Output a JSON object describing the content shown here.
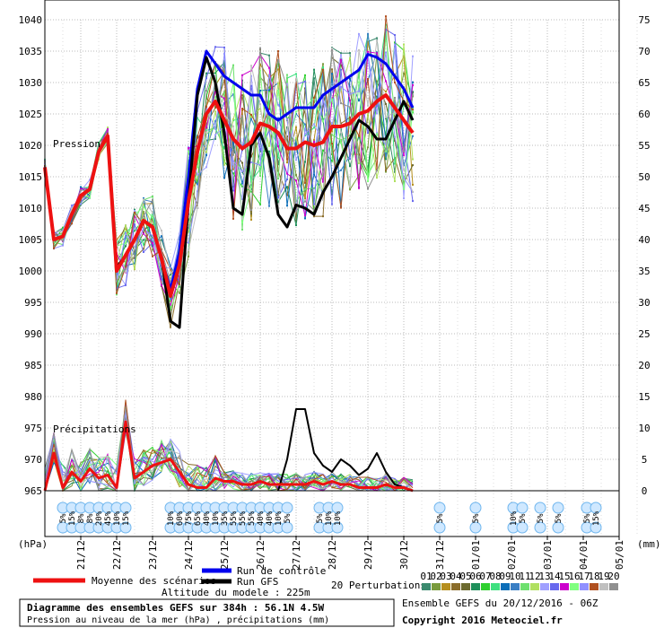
{
  "chart_data": {
    "type": "line",
    "title": "Diagramme des ensembles GEFS sur 384h : 56.1N 4.5W",
    "subtitle": "Pression au niveau de la mer (hPa) , précipitations (mm)",
    "left_unit": "(hPa)",
    "right_unit": "(mm)",
    "left_ticks": [
      965,
      970,
      975,
      980,
      985,
      990,
      995,
      1000,
      1005,
      1010,
      1015,
      1020,
      1025,
      1030,
      1035,
      1040
    ],
    "right_ticks": [
      0,
      5,
      10,
      15,
      20,
      25,
      30,
      35,
      40,
      45,
      50,
      55,
      60,
      65,
      70,
      75
    ],
    "y_left_range": [
      965,
      1040
    ],
    "y_right_range": [
      0,
      75
    ],
    "x_start_days": 0,
    "x_end_days": 16,
    "date_ticks": [
      "21/12",
      "22/12",
      "23/12",
      "24/12",
      "25/12",
      "26/12",
      "27/12",
      "28/12",
      "29/12",
      "30/12",
      "31/12",
      "01/01",
      "02/01",
      "03/01",
      "04/01",
      "05/01"
    ],
    "section_labels": {
      "pressure": "Pression",
      "precip": "Précipitations"
    },
    "grid": true,
    "series": [
      {
        "name": "Moyenne des scénarios",
        "color": "#ee1111",
        "pressure": [
          [
            0,
            1016.5
          ],
          [
            0.25,
            1005
          ],
          [
            0.5,
            1005.5
          ],
          [
            0.75,
            1009
          ],
          [
            1,
            1012
          ],
          [
            1.25,
            1013
          ],
          [
            1.5,
            1019
          ],
          [
            1.75,
            1021.5
          ],
          [
            2,
            1000
          ],
          [
            2.25,
            1002.5
          ],
          [
            2.5,
            1005
          ],
          [
            2.75,
            1008
          ],
          [
            3,
            1007
          ],
          [
            3.25,
            1002
          ],
          [
            3.5,
            996
          ],
          [
            3.75,
            1001
          ],
          [
            4,
            1011
          ],
          [
            4.25,
            1019
          ],
          [
            4.5,
            1025
          ],
          [
            4.75,
            1027
          ],
          [
            5,
            1024
          ],
          [
            5.25,
            1021
          ],
          [
            5.5,
            1019.5
          ],
          [
            5.75,
            1020.5
          ],
          [
            6,
            1023.5
          ],
          [
            6.25,
            1023
          ],
          [
            6.5,
            1022
          ],
          [
            6.75,
            1019.5
          ],
          [
            7,
            1019.5
          ],
          [
            7.25,
            1020.5
          ],
          [
            7.5,
            1020
          ],
          [
            7.75,
            1020.5
          ],
          [
            8,
            1023
          ],
          [
            8.25,
            1023
          ],
          [
            8.5,
            1023.5
          ],
          [
            8.75,
            1025
          ],
          [
            9,
            1025.5
          ],
          [
            9.25,
            1027
          ],
          [
            9.5,
            1028
          ],
          [
            9.75,
            1026
          ],
          [
            10,
            1024
          ],
          [
            10.25,
            1022
          ]
        ],
        "precip": [
          [
            0,
            0
          ],
          [
            0.25,
            6
          ],
          [
            0.5,
            0.5
          ],
          [
            0.75,
            3
          ],
          [
            1,
            1.5
          ],
          [
            1.25,
            3.5
          ],
          [
            1.5,
            2
          ],
          [
            1.75,
            2.5
          ],
          [
            2,
            0.5
          ],
          [
            2.25,
            11
          ],
          [
            2.5,
            2
          ],
          [
            2.75,
            3
          ],
          [
            3,
            4
          ],
          [
            3.25,
            4.5
          ],
          [
            3.5,
            5
          ],
          [
            3.75,
            3
          ],
          [
            4,
            1
          ],
          [
            4.25,
            0.5
          ],
          [
            4.5,
            0.5
          ],
          [
            4.75,
            2
          ],
          [
            5,
            1.5
          ],
          [
            5.25,
            1.5
          ],
          [
            5.5,
            1
          ],
          [
            5.75,
            1
          ],
          [
            6,
            1.5
          ],
          [
            6.25,
            1
          ],
          [
            6.5,
            1
          ],
          [
            6.75,
            1
          ],
          [
            7,
            1
          ],
          [
            7.25,
            1
          ],
          [
            7.5,
            1.5
          ],
          [
            7.75,
            1
          ],
          [
            8,
            1.5
          ],
          [
            8.25,
            1
          ],
          [
            8.5,
            1
          ],
          [
            8.75,
            0.5
          ],
          [
            9,
            0.5
          ],
          [
            9.25,
            0.5
          ],
          [
            9.5,
            1
          ],
          [
            9.75,
            0.5
          ],
          [
            10,
            0.5
          ],
          [
            10.25,
            0
          ]
        ]
      },
      {
        "name": "Run de contrôle",
        "color": "#0000ee",
        "pressure": [
          [
            0,
            1016.5
          ],
          [
            0.25,
            1005
          ],
          [
            0.5,
            1005.5
          ],
          [
            0.75,
            1009
          ],
          [
            1,
            1012
          ],
          [
            1.25,
            1013
          ],
          [
            1.5,
            1019
          ],
          [
            1.75,
            1021.5
          ],
          [
            2,
            1000
          ],
          [
            2.25,
            1002.5
          ],
          [
            2.5,
            1005
          ],
          [
            2.75,
            1008
          ],
          [
            3,
            1007
          ],
          [
            3.25,
            1002
          ],
          [
            3.5,
            997
          ],
          [
            3.75,
            1003
          ],
          [
            4,
            1015
          ],
          [
            4.25,
            1029
          ],
          [
            4.5,
            1035
          ],
          [
            4.75,
            1033
          ],
          [
            5,
            1031
          ],
          [
            5.25,
            1030
          ],
          [
            5.5,
            1029
          ],
          [
            5.75,
            1028
          ],
          [
            6,
            1028
          ],
          [
            6.25,
            1025
          ],
          [
            6.5,
            1024
          ],
          [
            6.75,
            1025
          ],
          [
            7,
            1026
          ],
          [
            7.25,
            1026
          ],
          [
            7.5,
            1026
          ],
          [
            7.75,
            1028
          ],
          [
            8,
            1029
          ],
          [
            8.25,
            1030
          ],
          [
            8.5,
            1031
          ],
          [
            8.75,
            1032
          ],
          [
            9,
            1034.5
          ],
          [
            9.25,
            1034
          ],
          [
            9.5,
            1033
          ],
          [
            9.75,
            1031
          ],
          [
            10,
            1029
          ],
          [
            10.25,
            1026
          ]
        ],
        "precip": []
      },
      {
        "name": "Run GFS",
        "color": "#000000",
        "pressure": [
          [
            0,
            1016.5
          ],
          [
            0.25,
            1005
          ],
          [
            0.5,
            1005.5
          ],
          [
            0.75,
            1009
          ],
          [
            1,
            1012
          ],
          [
            1.25,
            1013
          ],
          [
            1.5,
            1019
          ],
          [
            1.75,
            1021.5
          ],
          [
            2,
            1000.5
          ],
          [
            2.25,
            1002.5
          ],
          [
            2.5,
            1005
          ],
          [
            2.75,
            1008
          ],
          [
            3,
            1007
          ],
          [
            3.25,
            1002
          ],
          [
            3.5,
            992
          ],
          [
            3.75,
            991
          ],
          [
            4,
            1011
          ],
          [
            4.25,
            1028
          ],
          [
            4.5,
            1034
          ],
          [
            4.75,
            1030
          ],
          [
            5,
            1022
          ],
          [
            5.25,
            1010
          ],
          [
            5.5,
            1009
          ],
          [
            5.75,
            1020
          ],
          [
            6,
            1022
          ],
          [
            6.25,
            1018
          ],
          [
            6.5,
            1009
          ],
          [
            6.75,
            1007
          ],
          [
            7,
            1010.5
          ],
          [
            7.25,
            1010
          ],
          [
            7.5,
            1009
          ],
          [
            7.75,
            1012.5
          ],
          [
            8,
            1015
          ],
          [
            8.25,
            1018
          ],
          [
            8.5,
            1021
          ],
          [
            8.75,
            1024
          ],
          [
            9,
            1023
          ],
          [
            9.25,
            1021
          ],
          [
            9.5,
            1021
          ],
          [
            9.75,
            1024
          ],
          [
            10,
            1027
          ],
          [
            10.25,
            1024
          ]
        ],
        "precip": [
          [
            6.5,
            0
          ],
          [
            6.75,
            5
          ],
          [
            7,
            13
          ],
          [
            7.25,
            13
          ],
          [
            7.5,
            6
          ],
          [
            7.75,
            4
          ],
          [
            8,
            3
          ],
          [
            8.25,
            5
          ],
          [
            8.5,
            4
          ],
          [
            8.75,
            2.5
          ],
          [
            9,
            3.5
          ],
          [
            9.25,
            6
          ],
          [
            9.5,
            3
          ],
          [
            9.75,
            1
          ],
          [
            10,
            0.5
          ],
          [
            10.25,
            0
          ]
        ]
      }
    ],
    "n_perturbations": 20,
    "perturbation_colors": [
      "#3b8a6e",
      "#7a9b3d",
      "#b58f1e",
      "#8b6d2a",
      "#6c6a2f",
      "#1f8f5a",
      "#2fd02f",
      "#40e080",
      "#0c6eb8",
      "#3a7fc4",
      "#6ee06e",
      "#b0e060",
      "#a0a0ff",
      "#6868ee",
      "#cc00cc",
      "#80ff80",
      "#9090ff",
      "#b05020",
      "#c0c0c0",
      "#909090"
    ],
    "precip_percent_groups": [
      {
        "x_start": 0.5,
        "labels": [
          "5%",
          "15%",
          "8%",
          "8%",
          "20%",
          "45%",
          "10%",
          "15%"
        ]
      },
      {
        "x_start": 3.5,
        "labels": [
          "10%",
          "60%",
          "75%",
          "65%",
          "40%",
          "10%",
          "35%",
          "55%",
          "55%",
          "55%",
          "40%",
          "40%",
          "10%",
          "5%"
        ]
      },
      {
        "x_start": 7.65,
        "labels": [
          "5%",
          "10%",
          "10%"
        ]
      },
      {
        "x_start": 11,
        "labels": [
          "5%"
        ]
      },
      {
        "x_start": 12,
        "labels": [
          "5%"
        ]
      },
      {
        "x_start": 13.05,
        "labels": [
          "10%",
          "5%"
        ]
      },
      {
        "x_start": 13.8,
        "labels": [
          "5%"
        ]
      },
      {
        "x_start": 14.3,
        "labels": [
          "5%"
        ]
      },
      {
        "x_start": 15.1,
        "labels": [
          "5%",
          "15%"
        ]
      }
    ]
  },
  "legend": {
    "mean_label": "Moyenne des scénarios",
    "control_label": "Run de contrôle",
    "gfs_label": "Run GFS",
    "perturbations_label": "20 Perturbations",
    "perturbation_numbers": [
      "01",
      "02",
      "03",
      "04",
      "05",
      "06",
      "07",
      "08",
      "09",
      "10",
      "11",
      "12",
      "13",
      "14",
      "15",
      "16",
      "17",
      "18",
      "19",
      "20"
    ],
    "altitude_label": "Altitude du modele : 225m"
  },
  "footer": {
    "title": "Diagramme des ensembles GEFS sur 384h : 56.1N 4.5W",
    "subtitle": "Pression au niveau de la mer (hPa) , précipitations (mm)",
    "ensemble_label": "Ensemble GEFS du 20/12/2016 - 06Z",
    "copyright": "Copyright 2016 Meteociel.fr"
  }
}
